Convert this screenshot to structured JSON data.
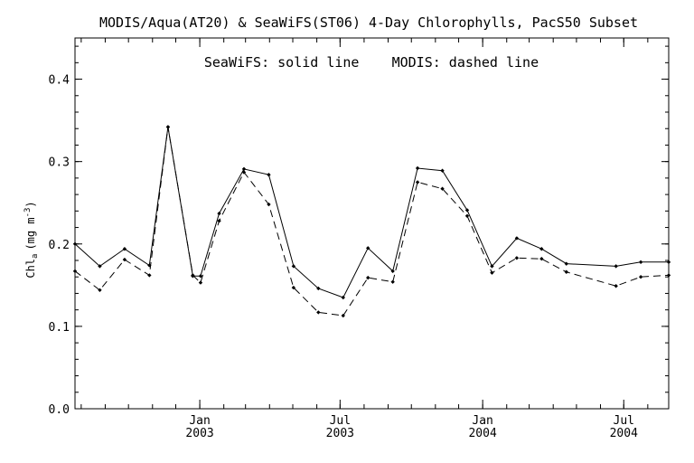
{
  "chart_data": {
    "type": "line",
    "title": "MODIS/Aqua(AT20) & SeaWiFS(ST06) 4-Day Chlorophylls, PacS50 Subset",
    "annotation": "SeaWiFS: solid line    MODIS: dashed line",
    "xlabel": "",
    "ylabel_main": "Chl",
    "ylabel_sub": "a",
    "ylabel_units": "(mg m",
    "ylabel_exp": "-3",
    "ylabel_close": ")",
    "x_range": [
      "2002-07-24",
      "2004-08-28"
    ],
    "ylim": [
      0.0,
      0.45
    ],
    "y_ticks": [
      {
        "value": 0.0,
        "label": "0.0"
      },
      {
        "value": 0.1,
        "label": "0.1"
      },
      {
        "value": 0.2,
        "label": "0.2"
      },
      {
        "value": 0.3,
        "label": "0.3"
      },
      {
        "value": 0.4,
        "label": "0.4"
      }
    ],
    "x_ticks": [
      {
        "date": "2003-01-01",
        "month": "Jan",
        "year": "2003"
      },
      {
        "date": "2003-07-01",
        "month": "Jul",
        "year": "2003"
      },
      {
        "date": "2004-01-01",
        "month": "Jan",
        "year": "2004"
      },
      {
        "date": "2004-07-01",
        "month": "Jul",
        "year": "2004"
      }
    ],
    "series": [
      {
        "name": "SeaWiFS",
        "style": "solid",
        "x": [
          "2002-07-24",
          "2002-08-25",
          "2002-09-26",
          "2002-10-28",
          "2002-11-21",
          "2002-12-23",
          "2003-01-02",
          "2003-01-26",
          "2003-02-27",
          "2003-03-31",
          "2003-05-02",
          "2003-06-03",
          "2003-07-05",
          "2003-08-06",
          "2003-09-07",
          "2003-10-09",
          "2003-11-10",
          "2003-12-12",
          "2004-01-13",
          "2004-02-14",
          "2004-03-17",
          "2004-04-18",
          "2004-06-21",
          "2004-07-23",
          "2004-08-28"
        ],
        "values": [
          0.2,
          0.173,
          0.194,
          0.174,
          0.342,
          0.161,
          0.161,
          0.237,
          0.291,
          0.284,
          0.173,
          0.146,
          0.135,
          0.195,
          0.167,
          0.292,
          0.289,
          0.241,
          0.173,
          0.207,
          0.194,
          0.176,
          0.173,
          0.178,
          0.178
        ]
      },
      {
        "name": "MODIS",
        "style": "dashed",
        "x": [
          "2002-07-24",
          "2002-08-25",
          "2002-09-26",
          "2002-10-28",
          "2002-11-21",
          "2002-12-23",
          "2003-01-02",
          "2003-01-26",
          "2003-02-27",
          "2003-03-31",
          "2003-05-02",
          "2003-06-03",
          "2003-07-05",
          "2003-08-06",
          "2003-09-07",
          "2003-10-09",
          "2003-11-10",
          "2003-12-12",
          "2004-01-13",
          "2004-02-14",
          "2004-03-17",
          "2004-04-18",
          "2004-06-21",
          "2004-07-23",
          "2004-08-28"
        ],
        "values": [
          0.167,
          0.144,
          0.181,
          0.162,
          0.342,
          0.162,
          0.153,
          0.228,
          0.287,
          0.248,
          0.147,
          0.117,
          0.113,
          0.159,
          0.154,
          0.275,
          0.267,
          0.234,
          0.165,
          0.183,
          0.182,
          0.166,
          0.149,
          0.16,
          0.162
        ]
      }
    ],
    "grid": false,
    "legend": "none"
  }
}
